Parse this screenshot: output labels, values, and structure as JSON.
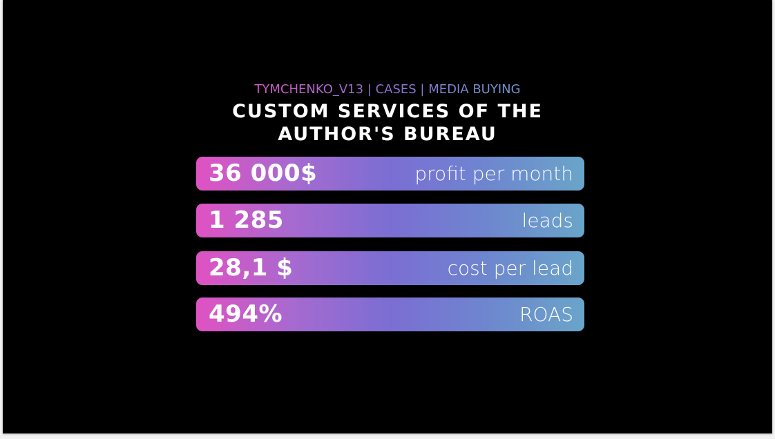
{
  "header": {
    "breadcrumb": "TYMCHENKO_V13 | CASES | MEDIA BUYING",
    "title_lines": [
      "CUSTOM SERVICES OF THE",
      "AUTHOR'S BUREAU"
    ]
  },
  "stats": [
    {
      "value": "36 000$",
      "label": "profit per month"
    },
    {
      "value": "1 285",
      "label": "leads"
    },
    {
      "value": "28,1 $",
      "label": "cost per lead"
    },
    {
      "value": "494%",
      "label": "ROAS"
    }
  ]
}
